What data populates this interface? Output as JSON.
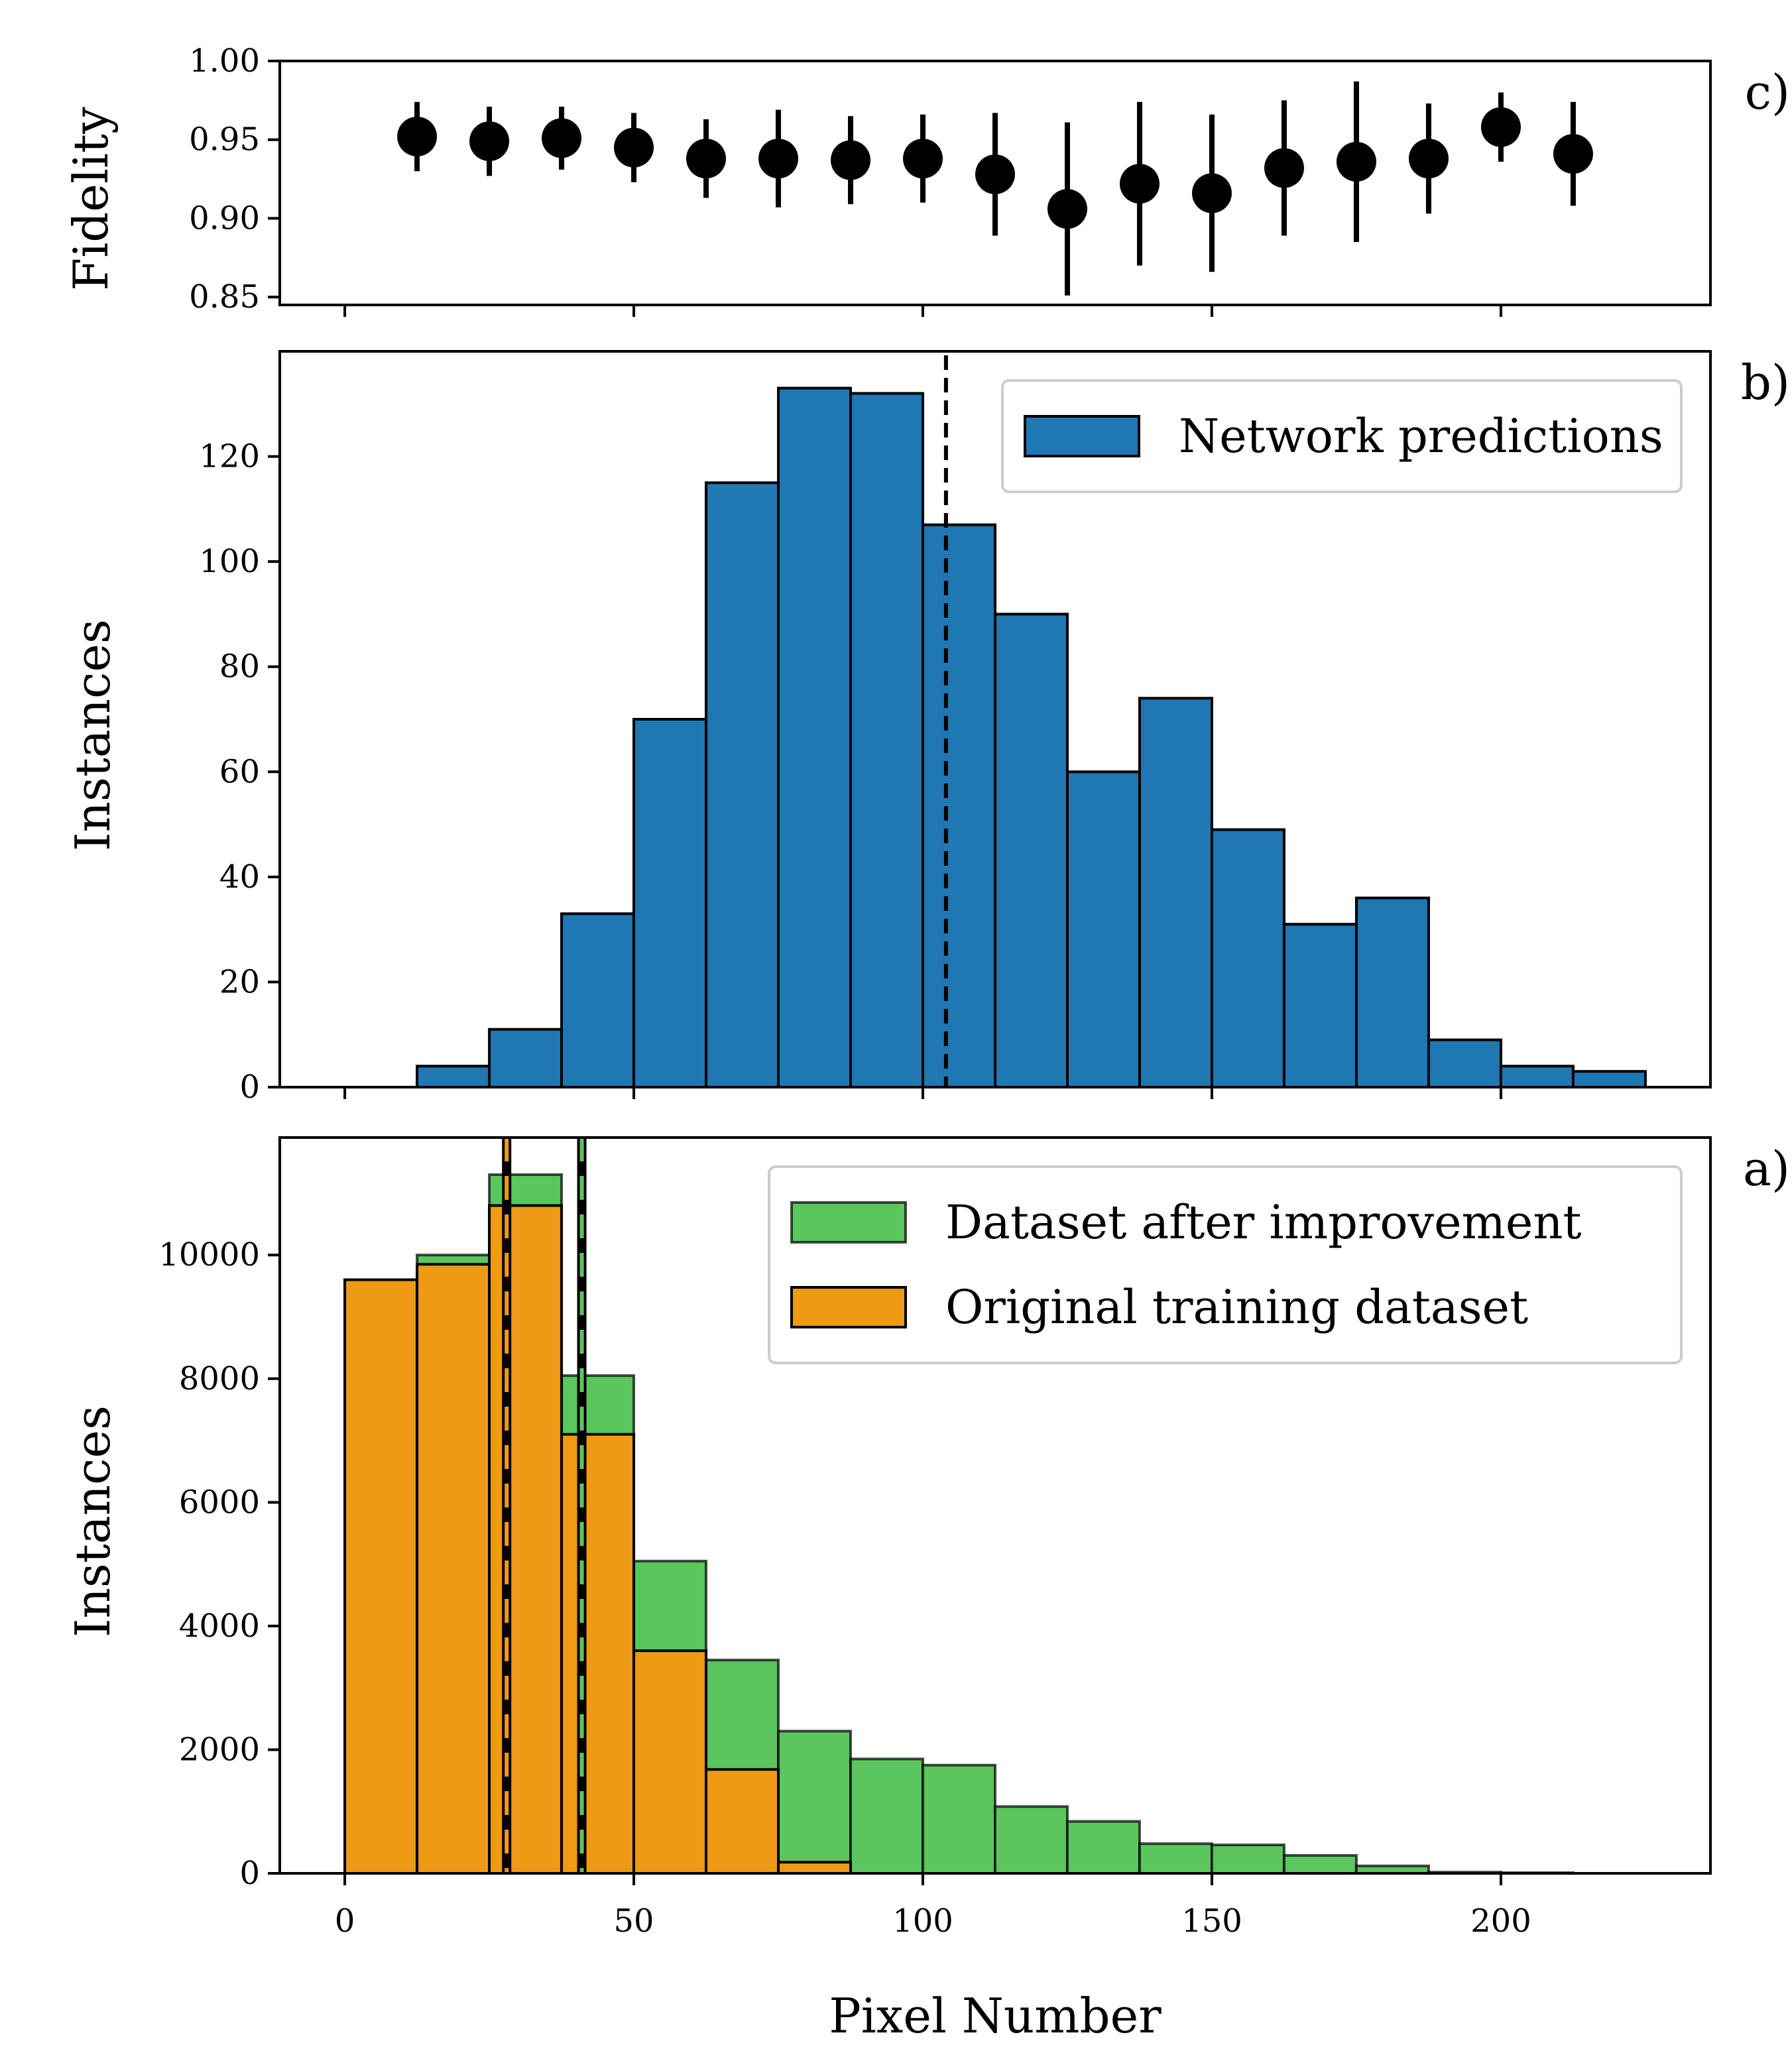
{
  "chart_data": [
    {
      "id": "c",
      "type": "scatter",
      "panel_label": "c)",
      "title": "",
      "xlabel": "",
      "ylabel": "Fidelity",
      "xlim": [
        -11.25,
        236.25
      ],
      "ylim": [
        0.845,
        1.0
      ],
      "xticks": [
        0,
        50,
        100,
        150,
        200
      ],
      "yticks": [
        0.85,
        0.9,
        0.95,
        1.0
      ],
      "ytick_labels": [
        "0.85",
        "0.90",
        "0.95",
        "1.00"
      ],
      "x": [
        12.5,
        25,
        37.5,
        50,
        62.5,
        75,
        87.5,
        100,
        112.5,
        125,
        137.5,
        150,
        162.5,
        175,
        187.5,
        200,
        212.5
      ],
      "y": [
        0.952,
        0.949,
        0.951,
        0.945,
        0.938,
        0.938,
        0.937,
        0.938,
        0.928,
        0.906,
        0.922,
        0.916,
        0.932,
        0.936,
        0.938,
        0.958,
        0.941
      ],
      "yerr": [
        0.022,
        0.022,
        0.02,
        0.022,
        0.025,
        0.031,
        0.028,
        0.028,
        0.039,
        0.055,
        0.052,
        0.05,
        0.043,
        0.051,
        0.035,
        0.022,
        0.033
      ],
      "color": "#000000"
    },
    {
      "id": "b",
      "type": "bar",
      "panel_label": "b)",
      "title": "",
      "xlabel": "",
      "ylabel": "Instances",
      "xlim": [
        -11.25,
        236.25
      ],
      "ylim": [
        0,
        140
      ],
      "xticks": [
        0,
        50,
        100,
        150,
        200
      ],
      "yticks": [
        0,
        20,
        40,
        60,
        80,
        100,
        120
      ],
      "ytick_labels": [
        "0",
        "20",
        "40",
        "60",
        "80",
        "100",
        "120"
      ],
      "bin_edges": [
        0,
        12.5,
        25,
        37.5,
        50,
        62.5,
        75,
        87.5,
        100,
        112.5,
        125,
        137.5,
        150,
        162.5,
        175,
        187.5,
        200,
        212.5,
        225
      ],
      "series": [
        {
          "name": "Network predictions",
          "color": "#1f77b4",
          "values": [
            0,
            4,
            11,
            33,
            70,
            115,
            133,
            132,
            107,
            90,
            60,
            74,
            49,
            31,
            36,
            9,
            4,
            3
          ]
        }
      ],
      "vlines": [
        {
          "x": 104,
          "color": "#000000",
          "dashed": true
        }
      ],
      "legend_position": "top-right"
    },
    {
      "id": "a",
      "type": "bar",
      "panel_label": "a)",
      "title": "",
      "xlabel": "Pixel Number",
      "ylabel": "Instances",
      "xlim": [
        -11.25,
        236.25
      ],
      "ylim": [
        0,
        11900
      ],
      "xticks": [
        0,
        50,
        100,
        150,
        200
      ],
      "xtick_labels": [
        "0",
        "50",
        "100",
        "150",
        "200"
      ],
      "yticks": [
        0,
        2000,
        4000,
        6000,
        8000,
        10000
      ],
      "ytick_labels": [
        "0",
        "2000",
        "4000",
        "6000",
        "8000",
        "10000"
      ],
      "bin_edges": [
        0,
        12.5,
        25,
        37.5,
        50,
        62.5,
        75,
        87.5,
        100,
        112.5,
        125,
        137.5,
        150,
        162.5,
        175,
        187.5,
        200,
        212.5,
        225
      ],
      "series": [
        {
          "name": "Dataset after improvement",
          "color": "#5bc65e",
          "values": [
            9600,
            10000,
            11300,
            8050,
            5050,
            3450,
            2300,
            1850,
            1750,
            1080,
            840,
            480,
            460,
            290,
            120,
            20,
            10,
            0
          ]
        },
        {
          "name": "Original training dataset",
          "color": "#ee9a14",
          "values": [
            9600,
            9850,
            10800,
            7100,
            3600,
            1680,
            180,
            0,
            0,
            0,
            0,
            0,
            0,
            0,
            0,
            0,
            0,
            0
          ]
        }
      ],
      "vlines": [
        {
          "x": 28,
          "color": "#ee9a14",
          "dashed": true
        },
        {
          "x": 41,
          "color": "#5bc65e",
          "dashed": true
        }
      ],
      "legend_position": "top-right"
    }
  ]
}
